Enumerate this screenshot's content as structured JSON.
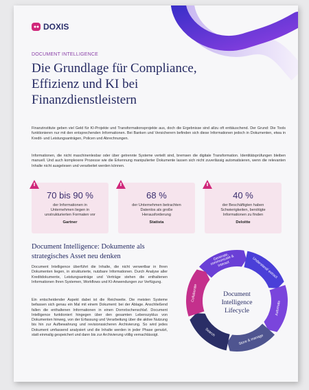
{
  "header": {
    "logo": "DOXIS",
    "kicker": "DOCUMENT INTELLIGENCE",
    "title": "Die Grundlage für Compliance, Effizienz und KI bei Finanzdienstleistern"
  },
  "intro": [
    "Finanzinstitute geben viel Geld für KI-Projekte und Transformationsprojekte aus, doch die Ergebnisse sind allzu oft enttäuschend. Der Grund: Die Tools funktionieren nur mit den entsprechenden Informationen. Bei Banken und Versicherern befinden sich diese Informationen jedoch in Dokumenten, etwa in Kredit- und Leistungsanträgen, Policen und Abrechnungen.",
    "Informationen, die nicht maschinenlesbar oder über getrennte Systeme verteilt sind, bremsen die digitale Transformation. Identitätsprüfungen bleiben manuell. Und auch komplexere Prozesse wie die Erkennung manipulierter Dokumente lassen sich nicht zuverlässig automatisieren, wenn die relevanten Inhalte nicht ausgelesen und verarbeitet werden können."
  ],
  "stats": [
    {
      "figure": "70 bis 90 %",
      "text": "der Informationen in Unternehmen liegen in unstrukturierten Formaten vor",
      "source": "Gartner"
    },
    {
      "figure": "68 %",
      "text": "der Unternehmen betrachten Datenlos als große Herausforderung",
      "source": "Statista"
    },
    {
      "figure": "40 %",
      "text": "der Beschäftigten haben Schwierigkeiten, benötigte Informationen zu finden",
      "source": "Deloitte"
    }
  ],
  "section": {
    "heading": "Document Intelligence: Dokumente als strategisches Asset neu denken",
    "paragraphs": [
      "Document Intelligence überführt die Inhalte, die nicht verwertbar in Ihren Dokumenten liegen, in strukturierte, nutzbare Informationen. Durch Analyse aller Kreditdokumente, Leistungsanträge und Verträge stehen die enthaltenen Informationen Ihren Systemen, Workflows und KI-Anwendungen zur Verfügung.",
      "Ein entscheidender Aspekt dabei ist die Reichweite. Die meisten Systeme befassen sich genau ein Mal mit einem Dokument: bei der Ablage. Anschließend fallen die enthaltenen Informationen in einen Dornröschenschlaf. Document Intelligence funktioniert hingegen über den gesamten Lebenszyklus von Dokumenten hinweg, von der Erfassung und Verarbeitung über die aktive Nutzung bis hin zur Aufbewahrung und revisionssicheren Archivierung. So wird jedes Dokument umfassend analysiert und die Inhalte werden in jeder Phase genutzt, statt einmalig gespeichert und dann bis zur Archivierung völlig vernachlässigt."
    ]
  },
  "lifecycle": {
    "center": "Document Intelligence Lifecycle",
    "stages": [
      "Generate, communicate & interact",
      "Understand/ extract",
      "Automate",
      "Store & manage",
      "Search",
      "Collaborate"
    ]
  }
}
